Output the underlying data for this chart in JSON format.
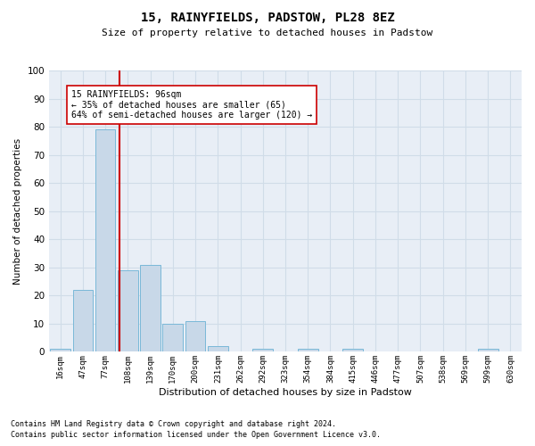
{
  "title": "15, RAINYFIELDS, PADSTOW, PL28 8EZ",
  "subtitle": "Size of property relative to detached houses in Padstow",
  "xlabel": "Distribution of detached houses by size in Padstow",
  "ylabel": "Number of detached properties",
  "footnote1": "Contains HM Land Registry data © Crown copyright and database right 2024.",
  "footnote2": "Contains public sector information licensed under the Open Government Licence v3.0.",
  "bin_labels": [
    "16sqm",
    "47sqm",
    "77sqm",
    "108sqm",
    "139sqm",
    "170sqm",
    "200sqm",
    "231sqm",
    "262sqm",
    "292sqm",
    "323sqm",
    "354sqm",
    "384sqm",
    "415sqm",
    "446sqm",
    "477sqm",
    "507sqm",
    "538sqm",
    "569sqm",
    "599sqm",
    "630sqm"
  ],
  "bar_values": [
    1,
    22,
    79,
    29,
    31,
    10,
    11,
    2,
    0,
    1,
    0,
    1,
    0,
    1,
    0,
    0,
    0,
    0,
    0,
    1,
    0
  ],
  "bar_color": "#c8d8e8",
  "bar_edgecolor": "#7ab8d8",
  "grid_color": "#d0dce8",
  "background_color": "#ffffff",
  "axes_facecolor": "#e8eef6",
  "vline_x": 2.645,
  "vline_color": "#cc0000",
  "annotation_text": "15 RAINYFIELDS: 96sqm\n← 35% of detached houses are smaller (65)\n64% of semi-detached houses are larger (120) →",
  "annotation_box_facecolor": "#ffffff",
  "annotation_box_edgecolor": "#cc0000",
  "ylim": [
    0,
    100
  ],
  "yticks": [
    0,
    10,
    20,
    30,
    40,
    50,
    60,
    70,
    80,
    90,
    100
  ]
}
